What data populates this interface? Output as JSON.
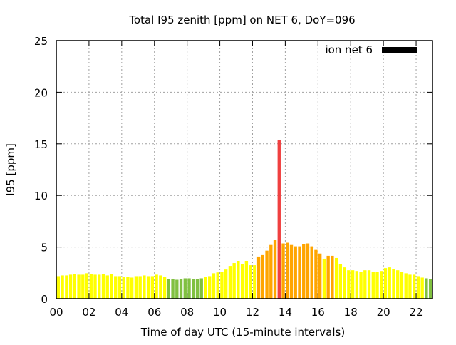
{
  "chart_data": {
    "type": "bar",
    "title": "Total I95 zenith [ppm] on NET 6, DoY=096",
    "xlabel": "Time of day UTC (15-minute intervals)",
    "ylabel": "I95 [ppm]",
    "ylim": [
      0,
      25
    ],
    "yticks": [
      "0",
      "5",
      "10",
      "15",
      "20",
      "25"
    ],
    "xlim_intervals": [
      0,
      92
    ],
    "xticks": [
      "00",
      "02",
      "04",
      "06",
      "08",
      "10",
      "12",
      "14",
      "16",
      "18",
      "20",
      "22"
    ],
    "grid": true,
    "legend": {
      "label": "ion net 6",
      "placement": "top-right",
      "color": "#000000"
    },
    "color_scale": [
      {
        "max": 2.0,
        "color": "#80c040"
      },
      {
        "max": 4.0,
        "color": "#ffff00"
      },
      {
        "max": 10.0,
        "color": "#ffa500"
      },
      {
        "max": 100,
        "color": "#f04040"
      }
    ],
    "values": [
      2.18,
      2.25,
      2.25,
      2.32,
      2.39,
      2.32,
      2.32,
      2.46,
      2.39,
      2.32,
      2.32,
      2.39,
      2.25,
      2.39,
      2.18,
      2.18,
      2.11,
      2.11,
      2.04,
      2.18,
      2.18,
      2.25,
      2.18,
      2.18,
      2.32,
      2.25,
      2.11,
      1.9,
      1.9,
      1.83,
      1.9,
      1.97,
      1.97,
      1.9,
      1.9,
      1.97,
      2.11,
      2.18,
      2.46,
      2.54,
      2.61,
      2.82,
      3.17,
      3.45,
      3.66,
      3.38,
      3.66,
      3.24,
      3.24,
      4.08,
      4.22,
      4.65,
      5.2,
      5.7,
      15.4,
      5.35,
      5.42,
      5.2,
      5.07,
      5.07,
      5.28,
      5.35,
      5.07,
      4.72,
      4.37,
      3.87,
      4.15,
      4.15,
      3.94,
      3.38,
      3.03,
      2.75,
      2.75,
      2.68,
      2.61,
      2.75,
      2.75,
      2.61,
      2.61,
      2.68,
      2.96,
      3.03,
      2.89,
      2.75,
      2.61,
      2.46,
      2.32,
      2.32,
      2.18,
      2.04,
      1.97,
      1.9
    ]
  }
}
